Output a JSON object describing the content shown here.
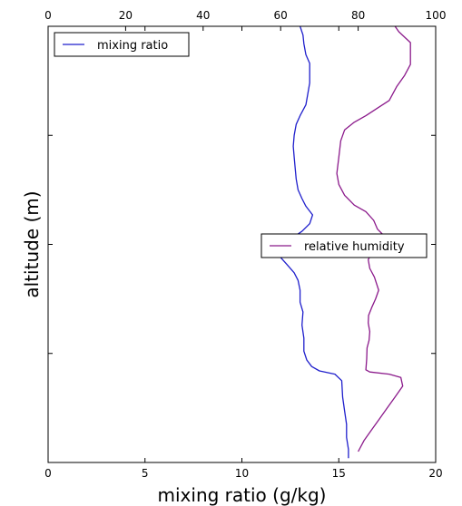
{
  "chart_data": {
    "type": "line",
    "title": "",
    "xlabel": "mixing ratio (g/kg)",
    "ylabel": "altitude (m)",
    "x_bottom": {
      "label": "mixing ratio (g/kg)",
      "lim": [
        0,
        20
      ],
      "ticks": [
        0,
        5,
        10,
        15,
        20
      ]
    },
    "x_top": {
      "lim": [
        0,
        100
      ],
      "ticks": [
        0,
        20,
        40,
        60,
        80,
        100
      ]
    },
    "y": {
      "lim": [
        0,
        4
      ],
      "tick_labels_shown": false
    },
    "grid": false,
    "series": [
      {
        "name": "mixing ratio",
        "axis": "bottom",
        "color": "#1f1fcc",
        "legend": "top-left",
        "points": [
          [
            15.5,
            0.04
          ],
          [
            15.5,
            0.12
          ],
          [
            15.4,
            0.23
          ],
          [
            15.4,
            0.35
          ],
          [
            15.3,
            0.47
          ],
          [
            15.2,
            0.6
          ],
          [
            15.15,
            0.75
          ],
          [
            14.8,
            0.81
          ],
          [
            14.0,
            0.84
          ],
          [
            13.6,
            0.88
          ],
          [
            13.35,
            0.94
          ],
          [
            13.2,
            1.02
          ],
          [
            13.2,
            1.14
          ],
          [
            13.1,
            1.26
          ],
          [
            13.15,
            1.38
          ],
          [
            13.0,
            1.47
          ],
          [
            13.0,
            1.58
          ],
          [
            12.9,
            1.67
          ],
          [
            12.7,
            1.74
          ],
          [
            12.3,
            1.82
          ],
          [
            12.0,
            1.88
          ],
          [
            11.95,
            1.94
          ],
          [
            12.2,
            2.0
          ],
          [
            12.6,
            2.06
          ],
          [
            13.1,
            2.12
          ],
          [
            13.5,
            2.19
          ],
          [
            13.65,
            2.27
          ],
          [
            13.3,
            2.35
          ],
          [
            13.1,
            2.42
          ],
          [
            12.9,
            2.5
          ],
          [
            12.8,
            2.6
          ],
          [
            12.75,
            2.7
          ],
          [
            12.7,
            2.8
          ],
          [
            12.65,
            2.9
          ],
          [
            12.7,
            3.0
          ],
          [
            12.8,
            3.1
          ],
          [
            13.0,
            3.18
          ],
          [
            13.3,
            3.28
          ],
          [
            13.4,
            3.38
          ],
          [
            13.5,
            3.48
          ],
          [
            13.5,
            3.58
          ],
          [
            13.5,
            3.66
          ],
          [
            13.3,
            3.74
          ],
          [
            13.2,
            3.84
          ],
          [
            13.15,
            3.92
          ],
          [
            13.0,
            4.0
          ]
        ]
      },
      {
        "name": "relative humidity",
        "axis": "top",
        "color": "#8b1a8b",
        "legend": "center-right",
        "points": [
          [
            80.0,
            0.1
          ],
          [
            81.5,
            0.2
          ],
          [
            83.5,
            0.3
          ],
          [
            85.5,
            0.4
          ],
          [
            87.5,
            0.5
          ],
          [
            89.5,
            0.6
          ],
          [
            91.5,
            0.7
          ],
          [
            91.0,
            0.78
          ],
          [
            88.0,
            0.81
          ],
          [
            83.0,
            0.83
          ],
          [
            82.0,
            0.85
          ],
          [
            82.2,
            0.95
          ],
          [
            82.3,
            1.05
          ],
          [
            82.8,
            1.12
          ],
          [
            83.0,
            1.2
          ],
          [
            82.6,
            1.28
          ],
          [
            82.7,
            1.35
          ],
          [
            83.5,
            1.42
          ],
          [
            84.5,
            1.5
          ],
          [
            85.3,
            1.58
          ],
          [
            84.2,
            1.7
          ],
          [
            83.0,
            1.78
          ],
          [
            82.6,
            1.86
          ],
          [
            83.5,
            1.92
          ],
          [
            85.5,
            1.98
          ],
          [
            87.5,
            2.05
          ],
          [
            85.0,
            2.14
          ],
          [
            84.0,
            2.22
          ],
          [
            82.0,
            2.3
          ],
          [
            79.0,
            2.36
          ],
          [
            76.5,
            2.45
          ],
          [
            75.0,
            2.55
          ],
          [
            74.5,
            2.65
          ],
          [
            75.0,
            2.8
          ],
          [
            75.5,
            2.95
          ],
          [
            76.5,
            3.05
          ],
          [
            79.0,
            3.12
          ],
          [
            82.0,
            3.18
          ],
          [
            85.0,
            3.25
          ],
          [
            88.0,
            3.32
          ],
          [
            90.0,
            3.45
          ],
          [
            92.0,
            3.55
          ],
          [
            93.5,
            3.65
          ],
          [
            93.5,
            3.75
          ],
          [
            93.5,
            3.85
          ],
          [
            92.0,
            3.9
          ],
          [
            90.5,
            3.95
          ],
          [
            89.5,
            4.0
          ]
        ]
      }
    ],
    "legends": [
      {
        "label": "mixing ratio",
        "placement": "top-left"
      },
      {
        "label": "relative humidity",
        "placement": "center-right"
      }
    ]
  }
}
